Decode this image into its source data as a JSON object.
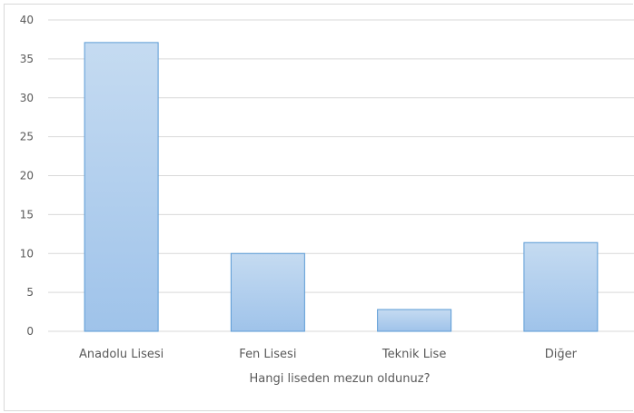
{
  "chart_data": {
    "type": "bar",
    "categories": [
      "Anadolu Lisesi",
      "Fen Lisesi",
      "Teknik Lise",
      "Diğer"
    ],
    "values": [
      37.1,
      10,
      2.8,
      11.4
    ],
    "title": "",
    "xlabel": "Hangi liseden mezun oldunuz?",
    "ylabel": "",
    "ylim": [
      0,
      40
    ],
    "yticks": [
      "0",
      "5",
      "10",
      "15",
      "20",
      "25",
      "30",
      "35",
      "40"
    ],
    "grid": true,
    "legend": "none"
  },
  "colors": {
    "bar_top": "#c5dbf1",
    "bar_bottom": "#9fc3ea",
    "bar_edge": "#5b9bd5",
    "grid": "#d9d9d9"
  }
}
